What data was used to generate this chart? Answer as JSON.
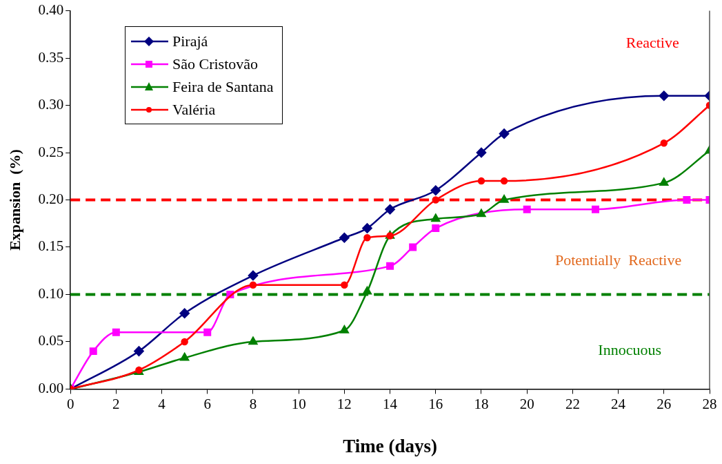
{
  "chart_data": {
    "type": "line",
    "xlabel": "Time (days)",
    "ylabel": "Expansion  (%)",
    "xlim": [
      0,
      28
    ],
    "xticks": [
      0,
      2,
      4,
      6,
      8,
      10,
      12,
      14,
      16,
      18,
      20,
      22,
      24,
      26,
      28
    ],
    "ylim": [
      0,
      0.4
    ],
    "yticks": [
      {
        "value": 0,
        "label": "0.00"
      },
      {
        "value": 0.05,
        "label": "0.05"
      },
      {
        "value": 0.1,
        "label": "0.10"
      },
      {
        "value": 0.15,
        "label": "0.15"
      },
      {
        "value": 0.2,
        "label": "0.20"
      },
      {
        "value": 0.25,
        "label": "0.25"
      },
      {
        "value": 0.3,
        "label": "0.30"
      },
      {
        "value": 0.35,
        "label": "0.35"
      },
      {
        "value": 0.4,
        "label": "0.40"
      }
    ],
    "grid": false,
    "legend": "top left",
    "line_style": "solid",
    "series": [
      {
        "name": "Pirajá",
        "color": "#000080",
        "marker": "diamond",
        "x": [
          0,
          3,
          5,
          8,
          12,
          13,
          14,
          16,
          18,
          19,
          26,
          28
        ],
        "values": [
          0,
          0.04,
          0.08,
          0.12,
          0.16,
          0.17,
          0.19,
          0.21,
          0.25,
          0.27,
          0.31,
          0.31
        ]
      },
      {
        "name": "São Cristovão",
        "color": "#ff00ff",
        "marker": "square",
        "x": [
          0,
          1,
          2,
          6,
          7,
          14,
          15,
          16,
          20,
          23,
          27,
          28
        ],
        "values": [
          0,
          0.04,
          0.06,
          0.06,
          0.1,
          0.13,
          0.15,
          0.17,
          0.19,
          0.19,
          0.2,
          0.2
        ]
      },
      {
        "name": "Feira de Santana",
        "color": "#008000",
        "marker": "triangle",
        "x": [
          0,
          3,
          5,
          8,
          12,
          13,
          14,
          16,
          18,
          19,
          26,
          28
        ],
        "values": [
          0,
          0.018,
          0.033,
          0.05,
          0.062,
          0.103,
          0.162,
          0.18,
          0.185,
          0.2,
          0.218,
          0.252
        ]
      },
      {
        "name": "Valéria",
        "color": "#ff0000",
        "marker": "circle",
        "x": [
          0,
          3,
          5,
          8,
          12,
          13,
          14,
          16,
          18,
          19,
          26,
          28
        ],
        "values": [
          0,
          0.02,
          0.05,
          0.11,
          0.11,
          0.16,
          0.162,
          0.2,
          0.22,
          0.22,
          0.26,
          0.3
        ]
      }
    ],
    "ref_lines": [
      {
        "axis": "y",
        "value": 0.2,
        "color": "#ff0000",
        "line_style": "dashed"
      },
      {
        "axis": "y",
        "value": 0.1,
        "color": "#008000",
        "line_style": "dashed"
      }
    ],
    "annotations": [
      "Reactive",
      "Potentially  Reactive",
      "Innocuous"
    ]
  }
}
